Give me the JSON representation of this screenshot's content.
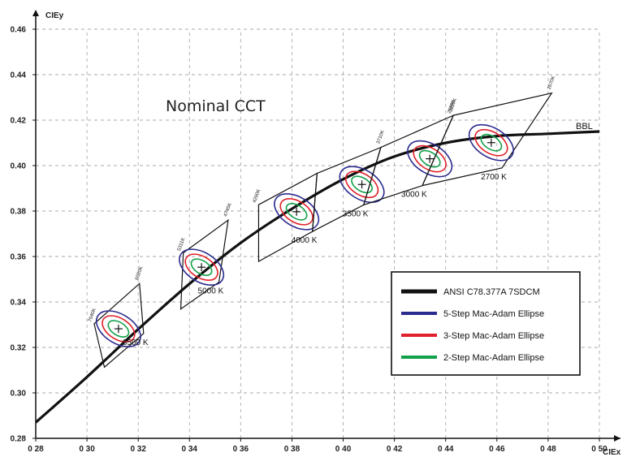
{
  "chart_data": {
    "type": "line",
    "title": "Nominal CCT",
    "xlabel": "CIEx",
    "ylabel": "CIEy",
    "xlim": [
      0.28,
      0.5
    ],
    "ylim": [
      0.28,
      0.46
    ],
    "grid": true,
    "x_tick_labels": [
      "0 28",
      "0 30",
      "0 32",
      "0 34",
      "0 36",
      "0 38",
      "0 40",
      "0 42",
      "0 44",
      "0 46",
      "0 48",
      "0 50"
    ],
    "y_tick_labels": [
      "0.28",
      "0.30",
      "0.32",
      "0.34",
      "0.36",
      "0.38",
      "0.40",
      "0.42",
      "0.44",
      "0.46"
    ],
    "bbl_label": "BBL",
    "colors": {
      "bbl": "#111111",
      "step5": "#2b2b8f",
      "step3": "#e0202a",
      "step2": "#13a04a",
      "grid": "#aaaaaa"
    },
    "series": [
      {
        "name": "ANSI C78.377A 7SDCM",
        "x": [
          0.28,
          0.3,
          0.32,
          0.34,
          0.36,
          0.38,
          0.4,
          0.42,
          0.44,
          0.46,
          0.48,
          0.5
        ],
        "y": [
          0.287,
          0.307,
          0.328,
          0.348,
          0.366,
          0.381,
          0.394,
          0.404,
          0.41,
          0.413,
          0.414,
          0.415
        ]
      },
      {
        "name": "5-Step Mac-Adam Ellipse"
      },
      {
        "name": "3-Step Mac-Adam Ellipse"
      },
      {
        "name": "2-Step Mac-Adam Ellipse"
      }
    ],
    "quadrangles": [
      {
        "label": "6500 K",
        "corner_label": "6020K",
        "side_label": "7040K",
        "center": [
          0.3123,
          0.3282
        ],
        "corners": [
          [
            0.3028,
            0.3304
          ],
          [
            0.3205,
            0.3481
          ],
          [
            0.3221,
            0.3261
          ],
          [
            0.3068,
            0.3113
          ]
        ]
      },
      {
        "label": "5000 K",
        "corner_label": "4745K",
        "side_label": "5311K",
        "center": [
          0.3447,
          0.3553
        ],
        "corners": [
          [
            0.3376,
            0.3616
          ],
          [
            0.3551,
            0.376
          ],
          [
            0.3515,
            0.3487
          ],
          [
            0.3366,
            0.3369
          ]
        ]
      },
      {
        "label": "4000 K",
        "corner_label": "",
        "side_label": "4260K",
        "center": [
          0.3818,
          0.3797
        ],
        "corners": [
          [
            0.367,
            0.3828
          ],
          [
            0.3898,
            0.3966
          ],
          [
            0.388,
            0.371
          ],
          [
            0.367,
            0.3578
          ]
        ]
      },
      {
        "label": "3500 K",
        "corner_label": "3710K",
        "side_label": "",
        "center": [
          0.4073,
          0.3917
        ],
        "corners": [
          [
            0.3898,
            0.3966
          ],
          [
            0.4147,
            0.408
          ],
          [
            0.408,
            0.3827
          ],
          [
            0.388,
            0.371
          ]
        ]
      },
      {
        "label": "3000 K",
        "corner_label": "3220K",
        "side_label": "",
        "center": [
          0.4338,
          0.403
        ],
        "corners": [
          [
            0.4147,
            0.408
          ],
          [
            0.443,
            0.4221
          ],
          [
            0.4309,
            0.3912
          ],
          [
            0.408,
            0.3827
          ]
        ]
      },
      {
        "label": "2700 K",
        "corner_label": "2670K",
        "side_label": "2580K",
        "center": [
          0.4578,
          0.4101
        ],
        "corners": [
          [
            0.443,
            0.4221
          ],
          [
            0.4814,
            0.4319
          ],
          [
            0.462,
            0.399
          ],
          [
            0.4309,
            0.3912
          ]
        ]
      }
    ]
  },
  "legend": {
    "items": [
      {
        "label": "ANSI C78.377A 7SDCM",
        "color": "#111111"
      },
      {
        "label": "5-Step Mac-Adam Ellipse",
        "color": "#2b2b8f"
      },
      {
        "label": "3-Step Mac-Adam Ellipse",
        "color": "#e0202a"
      },
      {
        "label": "2-Step Mac-Adam Ellipse",
        "color": "#13a04a"
      }
    ]
  }
}
